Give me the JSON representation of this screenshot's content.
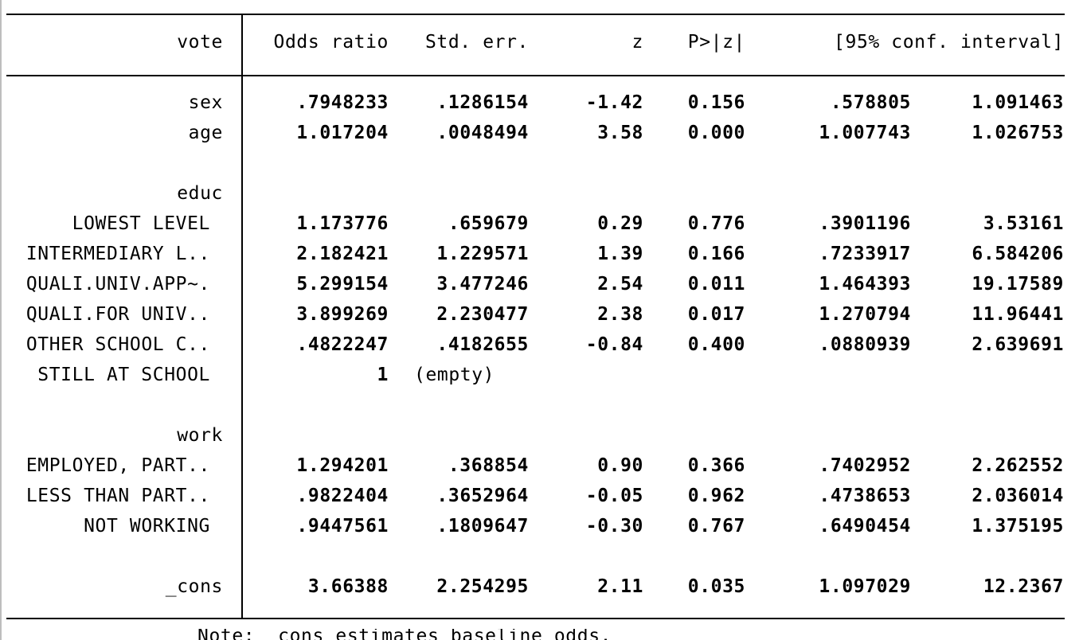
{
  "header": {
    "depvar": "vote",
    "odds": "Odds ratio",
    "se": "Std. err.",
    "z": "z",
    "p": "P>|z|",
    "ci": "[95% conf. interval]"
  },
  "rows": {
    "sex": {
      "label": "sex",
      "odds": ".7948233",
      "se": ".1286154",
      "z": "-1.42",
      "p": "0.156",
      "lo": ".578805",
      "hi": "1.091463"
    },
    "age": {
      "label": "age",
      "odds": "1.017204",
      "se": ".0048494",
      "z": "3.58",
      "p": "0.000",
      "lo": "1.007743",
      "hi": "1.026753"
    },
    "educ_group": {
      "label": "educ"
    },
    "educ1": {
      "label": "LOWEST LEVEL",
      "odds": "1.173776",
      "se": ".659679",
      "z": "0.29",
      "p": "0.776",
      "lo": ".3901196",
      "hi": "3.53161"
    },
    "educ2": {
      "label": "INTERMEDIARY L..",
      "odds": "2.182421",
      "se": "1.229571",
      "z": "1.39",
      "p": "0.166",
      "lo": ".7233917",
      "hi": "6.584206"
    },
    "educ3": {
      "label": "QUALI.UNIV.APP~.",
      "odds": "5.299154",
      "se": "3.477246",
      "z": "2.54",
      "p": "0.011",
      "lo": "1.464393",
      "hi": "19.17589"
    },
    "educ4": {
      "label": "QUALI.FOR UNIV..",
      "odds": "3.899269",
      "se": "2.230477",
      "z": "2.38",
      "p": "0.017",
      "lo": "1.270794",
      "hi": "11.96441"
    },
    "educ5": {
      "label": "OTHER SCHOOL C..",
      "odds": ".4822247",
      "se": ".4182655",
      "z": "-0.84",
      "p": "0.400",
      "lo": ".0880939",
      "hi": "2.639691"
    },
    "educ6": {
      "label": "STILL AT SCHOOL",
      "odds": "1",
      "note": "(empty)"
    },
    "work_group": {
      "label": "work"
    },
    "work1": {
      "label": "EMPLOYED, PART..",
      "odds": "1.294201",
      "se": ".368854",
      "z": "0.90",
      "p": "0.366",
      "lo": ".7402952",
      "hi": "2.262552"
    },
    "work2": {
      "label": "LESS THAN PART..",
      "odds": ".9822404",
      "se": ".3652964",
      "z": "-0.05",
      "p": "0.962",
      "lo": ".4738653",
      "hi": "2.036014"
    },
    "work3": {
      "label": "NOT WORKING",
      "odds": ".9447561",
      "se": ".1809647",
      "z": "-0.30",
      "p": "0.767",
      "lo": ".6490454",
      "hi": "1.375195"
    },
    "cons": {
      "label": "_cons",
      "odds": "3.66388",
      "se": "2.254295",
      "z": "2.11",
      "p": "0.035",
      "lo": "1.097029",
      "hi": "12.2367"
    }
  },
  "footer": {
    "note": "Note: _cons estimates baseline odds."
  }
}
